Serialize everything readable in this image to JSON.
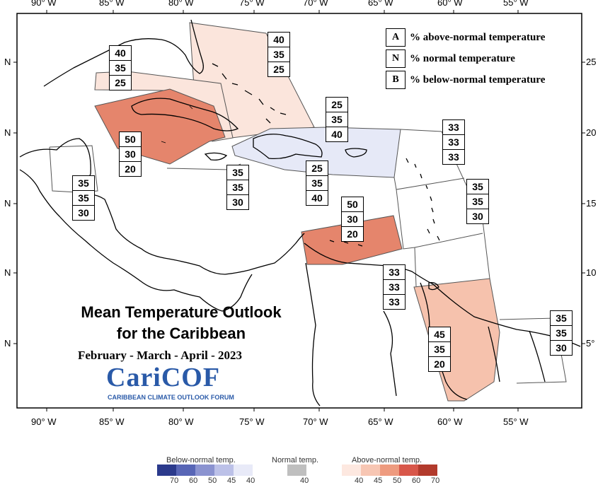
{
  "title": {
    "line1": "Mean Temperature Outlook",
    "line2": "for the Caribbean",
    "period": "February - March - April - 2023"
  },
  "logo": {
    "name": "CariCOF",
    "tagline": "CARIBBEAN CLIMATE OUTLOOK FORUM"
  },
  "legend": [
    {
      "letter": "A",
      "text": "% above-normal temperature"
    },
    {
      "letter": "N",
      "text": "% normal temperature"
    },
    {
      "letter": "B",
      "text": "% below-normal temperature"
    }
  ],
  "lon_labels": [
    "90° W",
    "85° W",
    "80° W",
    "75° W",
    "70° W",
    "65° W",
    "60° W",
    "55° W"
  ],
  "lat_labels_left": [
    "N",
    "N",
    "N",
    "N",
    "N"
  ],
  "lat_labels_right": [
    "25",
    "20",
    "15",
    "10",
    "5°"
  ],
  "regions": [
    {
      "name": "bahamas",
      "values": [
        "40",
        "35",
        "25"
      ],
      "category": "above-40"
    },
    {
      "name": "cuba-west",
      "values": [
        "40",
        "35",
        "25"
      ],
      "category": "above-40"
    },
    {
      "name": "cayman-jamaica",
      "values": [
        "50",
        "30",
        "20"
      ],
      "category": "above-50"
    },
    {
      "name": "hispaniola-pr",
      "values": [
        "25",
        "35",
        "40"
      ],
      "category": "below-40"
    },
    {
      "name": "hispaniola-pr-upper",
      "values": [
        "25",
        "35",
        "40"
      ],
      "category": "below-40"
    },
    {
      "name": "central-caribbean",
      "values": [
        "35",
        "35",
        "30"
      ],
      "category": "none"
    },
    {
      "name": "belize",
      "values": [
        "35",
        "35",
        "30"
      ],
      "category": "none"
    },
    {
      "name": "leeward-islands",
      "values": [
        "33",
        "33",
        "33"
      ],
      "category": "none"
    },
    {
      "name": "windward-islands",
      "values": [
        "35",
        "35",
        "30"
      ],
      "category": "none"
    },
    {
      "name": "abc-islands",
      "values": [
        "50",
        "30",
        "20"
      ],
      "category": "above-50"
    },
    {
      "name": "trinidad",
      "values": [
        "33",
        "33",
        "33"
      ],
      "category": "none"
    },
    {
      "name": "guyana",
      "values": [
        "45",
        "35",
        "20"
      ],
      "category": "above-45"
    },
    {
      "name": "suriname-fg",
      "values": [
        "35",
        "35",
        "30"
      ],
      "category": "none"
    }
  ],
  "colors": {
    "above-40": "#fbe5dc",
    "above-45": "#f6c2ad",
    "above-50": "#e5856c",
    "below-40": "#e6e9f7",
    "none": "#ffffff"
  },
  "scale": {
    "below_title": "Below-normal temp.",
    "normal_title": "Normal temp.",
    "above_title": "Above-normal temp.",
    "below": [
      {
        "label": "70",
        "color": "#2b3a8c"
      },
      {
        "label": "60",
        "color": "#5866b6"
      },
      {
        "label": "50",
        "color": "#8b93d0"
      },
      {
        "label": "45",
        "color": "#bcc1e8"
      },
      {
        "label": "40",
        "color": "#e8eaf8"
      }
    ],
    "normal": [
      {
        "label": "40",
        "color": "#bfbfbf"
      }
    ],
    "above": [
      {
        "label": "40",
        "color": "#fde8e0"
      },
      {
        "label": "45",
        "color": "#f7c6b3"
      },
      {
        "label": "50",
        "color": "#ee9b7f"
      },
      {
        "label": "60",
        "color": "#d8574a"
      },
      {
        "label": "70",
        "color": "#b23a2c"
      }
    ]
  }
}
